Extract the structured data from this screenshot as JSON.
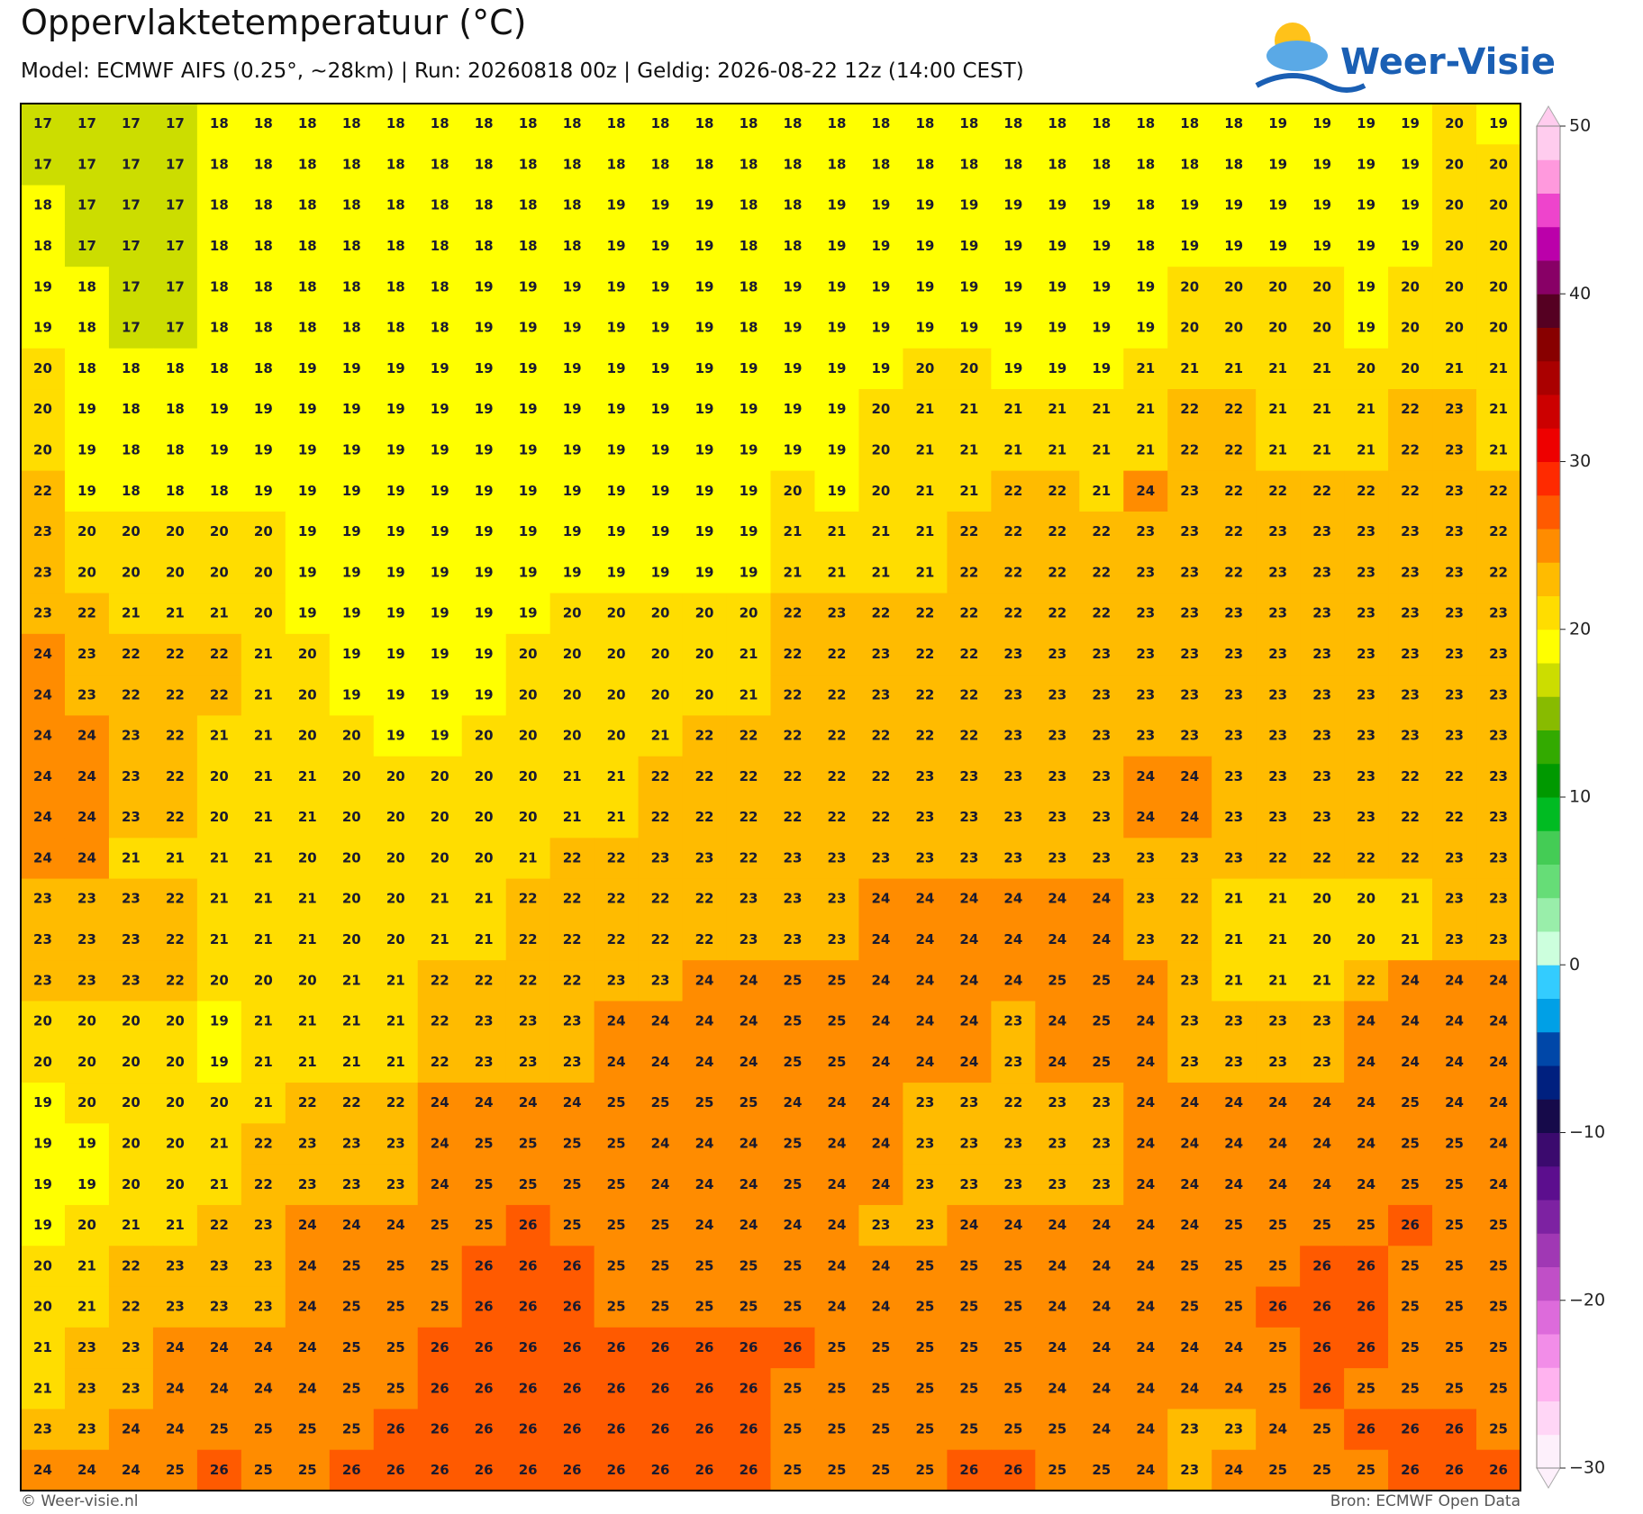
{
  "header": {
    "title": "Oppervlaktetemperatuur (°C)",
    "subtitle": "Model: ECMWF AIFS (0.25°, ~28km)  |  Run: 20260818 00z  |  Geldig: 2026-08-22 12z (14:00 CEST)",
    "logo": "Weer-Visie"
  },
  "footer": {
    "left": "© Weer-visie.nl",
    "right": "Bron: ECMWF Open Data"
  },
  "colorbar": {
    "lim": [
      -30,
      50
    ],
    "ticks": [
      50,
      40,
      30,
      20,
      10,
      0,
      {
        "value": -10,
        "label": "−10"
      },
      {
        "value": -20,
        "label": "−20"
      },
      {
        "value": -30,
        "label": "−30"
      }
    ],
    "colors": [
      "#fdf0fb",
      "#ffd6f6",
      "#ffb3ef",
      "#f28de8",
      "#dd6bdb",
      "#c04fc7",
      "#a038b4",
      "#7d22a2",
      "#5c0e8e",
      "#3b0a6e",
      "#160a4a",
      "#00207f",
      "#0047a8",
      "#00a0e6",
      "#33ccff",
      "#ccffdd",
      "#99eeaa",
      "#66dd77",
      "#44cc55",
      "#00bb22",
      "#009900",
      "#33aa00",
      "#88bb00",
      "#ccdd00",
      "#ffff00",
      "#ffdd00",
      "#ffbb00",
      "#ff8c00",
      "#ff5a00",
      "#ff2a00",
      "#ee0000",
      "#cc0000",
      "#aa0000",
      "#880000",
      "#550022",
      "#880066",
      "#bb00aa",
      "#ee44cc",
      "#ff99dd",
      "#ffccee"
    ]
  },
  "grid": {
    "rows": [
      [
        17,
        17,
        17,
        17,
        18,
        18,
        18,
        18,
        18,
        18,
        18,
        18,
        18,
        18,
        18,
        18,
        18,
        18,
        18,
        18,
        18,
        18,
        18,
        18,
        18,
        18,
        18,
        18,
        19,
        19,
        19,
        19,
        20,
        19
      ],
      [
        17,
        17,
        17,
        17,
        18,
        18,
        18,
        18,
        18,
        18,
        18,
        18,
        18,
        18,
        18,
        18,
        18,
        18,
        18,
        18,
        18,
        18,
        18,
        18,
        18,
        18,
        18,
        18,
        19,
        19,
        19,
        19,
        20,
        20
      ],
      [
        18,
        17,
        17,
        17,
        18,
        18,
        18,
        18,
        18,
        18,
        18,
        18,
        18,
        19,
        19,
        19,
        18,
        18,
        19,
        19,
        19,
        19,
        19,
        19,
        19,
        18,
        19,
        19,
        19,
        19,
        19,
        19,
        20,
        20
      ],
      [
        18,
        17,
        17,
        17,
        18,
        18,
        18,
        18,
        18,
        18,
        18,
        18,
        18,
        19,
        19,
        19,
        18,
        18,
        19,
        19,
        19,
        19,
        19,
        19,
        19,
        18,
        19,
        19,
        19,
        19,
        19,
        19,
        20,
        20
      ],
      [
        19,
        18,
        17,
        17,
        18,
        18,
        18,
        18,
        18,
        18,
        19,
        19,
        19,
        19,
        19,
        19,
        18,
        19,
        19,
        19,
        19,
        19,
        19,
        19,
        19,
        19,
        20,
        20,
        20,
        20,
        19,
        20,
        20,
        20
      ],
      [
        19,
        18,
        17,
        17,
        18,
        18,
        18,
        18,
        18,
        18,
        19,
        19,
        19,
        19,
        19,
        19,
        18,
        19,
        19,
        19,
        19,
        19,
        19,
        19,
        19,
        19,
        20,
        20,
        20,
        20,
        19,
        20,
        20,
        20
      ],
      [
        20,
        18,
        18,
        18,
        18,
        18,
        19,
        19,
        19,
        19,
        19,
        19,
        19,
        19,
        19,
        19,
        19,
        19,
        19,
        19,
        20,
        20,
        19,
        19,
        19,
        21,
        21,
        21,
        21,
        21,
        20,
        20,
        21,
        21
      ],
      [
        20,
        19,
        18,
        18,
        19,
        19,
        19,
        19,
        19,
        19,
        19,
        19,
        19,
        19,
        19,
        19,
        19,
        19,
        19,
        20,
        21,
        21,
        21,
        21,
        21,
        21,
        22,
        22,
        21,
        21,
        21,
        22,
        23,
        21
      ],
      [
        20,
        19,
        18,
        18,
        19,
        19,
        19,
        19,
        19,
        19,
        19,
        19,
        19,
        19,
        19,
        19,
        19,
        19,
        19,
        20,
        21,
        21,
        21,
        21,
        21,
        21,
        22,
        22,
        21,
        21,
        21,
        22,
        23,
        21
      ],
      [
        22,
        19,
        18,
        18,
        18,
        19,
        19,
        19,
        19,
        19,
        19,
        19,
        19,
        19,
        19,
        19,
        19,
        20,
        19,
        20,
        21,
        21,
        22,
        22,
        21,
        24,
        23,
        22,
        22,
        22,
        22,
        22,
        23,
        22
      ],
      [
        23,
        20,
        20,
        20,
        20,
        20,
        19,
        19,
        19,
        19,
        19,
        19,
        19,
        19,
        19,
        19,
        19,
        21,
        21,
        21,
        21,
        22,
        22,
        22,
        22,
        23,
        23,
        22,
        23,
        23,
        23,
        23,
        23,
        22
      ],
      [
        23,
        20,
        20,
        20,
        20,
        20,
        19,
        19,
        19,
        19,
        19,
        19,
        19,
        19,
        19,
        19,
        19,
        21,
        21,
        21,
        21,
        22,
        22,
        22,
        22,
        23,
        23,
        22,
        23,
        23,
        23,
        23,
        23,
        22
      ],
      [
        23,
        22,
        21,
        21,
        21,
        20,
        19,
        19,
        19,
        19,
        19,
        19,
        20,
        20,
        20,
        20,
        20,
        22,
        23,
        22,
        22,
        22,
        22,
        22,
        22,
        23,
        23,
        23,
        23,
        23,
        23,
        23,
        23,
        23
      ],
      [
        24,
        23,
        22,
        22,
        22,
        21,
        20,
        19,
        19,
        19,
        19,
        20,
        20,
        20,
        20,
        20,
        21,
        22,
        22,
        23,
        22,
        22,
        23,
        23,
        23,
        23,
        23,
        23,
        23,
        23,
        23,
        23,
        23,
        23
      ],
      [
        24,
        23,
        22,
        22,
        22,
        21,
        20,
        19,
        19,
        19,
        19,
        20,
        20,
        20,
        20,
        20,
        21,
        22,
        22,
        23,
        22,
        22,
        23,
        23,
        23,
        23,
        23,
        23,
        23,
        23,
        23,
        23,
        23,
        23
      ],
      [
        24,
        24,
        23,
        22,
        21,
        21,
        20,
        20,
        19,
        19,
        20,
        20,
        20,
        20,
        21,
        22,
        22,
        22,
        22,
        22,
        22,
        22,
        23,
        23,
        23,
        23,
        23,
        23,
        23,
        23,
        23,
        23,
        23,
        23
      ],
      [
        24,
        24,
        23,
        22,
        20,
        21,
        21,
        20,
        20,
        20,
        20,
        20,
        21,
        21,
        22,
        22,
        22,
        22,
        22,
        22,
        23,
        23,
        23,
        23,
        23,
        24,
        24,
        23,
        23,
        23,
        23,
        22,
        22,
        23
      ],
      [
        24,
        24,
        23,
        22,
        20,
        21,
        21,
        20,
        20,
        20,
        20,
        20,
        21,
        21,
        22,
        22,
        22,
        22,
        22,
        22,
        23,
        23,
        23,
        23,
        23,
        24,
        24,
        23,
        23,
        23,
        23,
        22,
        22,
        23
      ],
      [
        24,
        24,
        21,
        21,
        21,
        21,
        20,
        20,
        20,
        20,
        20,
        21,
        22,
        22,
        23,
        23,
        22,
        23,
        23,
        23,
        23,
        23,
        23,
        23,
        23,
        23,
        23,
        23,
        22,
        22,
        22,
        22,
        23,
        23
      ],
      [
        23,
        23,
        23,
        22,
        21,
        21,
        21,
        20,
        20,
        21,
        21,
        22,
        22,
        22,
        22,
        22,
        23,
        23,
        23,
        24,
        24,
        24,
        24,
        24,
        24,
        23,
        22,
        21,
        21,
        20,
        20,
        21,
        23,
        23
      ],
      [
        23,
        23,
        23,
        22,
        21,
        21,
        21,
        20,
        20,
        21,
        21,
        22,
        22,
        22,
        22,
        22,
        23,
        23,
        23,
        24,
        24,
        24,
        24,
        24,
        24,
        23,
        22,
        21,
        21,
        20,
        20,
        21,
        23,
        23
      ],
      [
        23,
        23,
        23,
        22,
        20,
        20,
        20,
        21,
        21,
        22,
        22,
        22,
        22,
        23,
        23,
        24,
        24,
        25,
        25,
        24,
        24,
        24,
        24,
        25,
        25,
        24,
        23,
        21,
        21,
        21,
        22,
        24,
        24,
        24
      ],
      [
        20,
        20,
        20,
        20,
        19,
        21,
        21,
        21,
        21,
        22,
        23,
        23,
        23,
        24,
        24,
        24,
        24,
        25,
        25,
        24,
        24,
        24,
        23,
        24,
        25,
        24,
        23,
        23,
        23,
        23,
        24,
        24,
        24,
        24
      ],
      [
        20,
        20,
        20,
        20,
        19,
        21,
        21,
        21,
        21,
        22,
        23,
        23,
        23,
        24,
        24,
        24,
        24,
        25,
        25,
        24,
        24,
        24,
        23,
        24,
        25,
        24,
        23,
        23,
        23,
        23,
        24,
        24,
        24,
        24
      ],
      [
        19,
        20,
        20,
        20,
        20,
        21,
        22,
        22,
        22,
        24,
        24,
        24,
        24,
        25,
        25,
        25,
        25,
        24,
        24,
        24,
        23,
        23,
        22,
        23,
        23,
        24,
        24,
        24,
        24,
        24,
        24,
        25,
        24,
        24
      ],
      [
        19,
        19,
        20,
        20,
        21,
        22,
        23,
        23,
        23,
        24,
        25,
        25,
        25,
        25,
        24,
        24,
        24,
        25,
        24,
        24,
        23,
        23,
        23,
        23,
        23,
        24,
        24,
        24,
        24,
        24,
        24,
        25,
        25,
        24
      ],
      [
        19,
        19,
        20,
        20,
        21,
        22,
        23,
        23,
        23,
        24,
        25,
        25,
        25,
        25,
        24,
        24,
        24,
        25,
        24,
        24,
        23,
        23,
        23,
        23,
        23,
        24,
        24,
        24,
        24,
        24,
        24,
        25,
        25,
        24
      ],
      [
        19,
        20,
        21,
        21,
        22,
        23,
        24,
        24,
        24,
        25,
        25,
        26,
        25,
        25,
        25,
        24,
        24,
        24,
        24,
        23,
        23,
        24,
        24,
        24,
        24,
        24,
        24,
        25,
        25,
        25,
        25,
        26,
        25,
        25
      ],
      [
        20,
        21,
        22,
        23,
        23,
        23,
        24,
        25,
        25,
        25,
        26,
        26,
        26,
        25,
        25,
        25,
        25,
        25,
        24,
        24,
        25,
        25,
        25,
        24,
        24,
        24,
        25,
        25,
        25,
        26,
        26,
        25,
        25,
        25
      ],
      [
        20,
        21,
        22,
        23,
        23,
        23,
        24,
        25,
        25,
        25,
        26,
        26,
        26,
        25,
        25,
        25,
        25,
        25,
        24,
        24,
        25,
        25,
        25,
        24,
        24,
        24,
        25,
        25,
        26,
        26,
        26,
        25,
        25,
        25
      ],
      [
        21,
        23,
        23,
        24,
        24,
        24,
        24,
        25,
        25,
        26,
        26,
        26,
        26,
        26,
        26,
        26,
        26,
        26,
        25,
        25,
        25,
        25,
        25,
        24,
        24,
        24,
        24,
        24,
        25,
        26,
        26,
        25,
        25,
        25
      ],
      [
        21,
        23,
        23,
        24,
        24,
        24,
        24,
        25,
        25,
        26,
        26,
        26,
        26,
        26,
        26,
        26,
        26,
        25,
        25,
        25,
        25,
        25,
        25,
        24,
        24,
        24,
        24,
        24,
        25,
        26,
        25,
        25,
        25,
        25
      ],
      [
        23,
        23,
        24,
        24,
        25,
        25,
        25,
        25,
        26,
        26,
        26,
        26,
        26,
        26,
        26,
        26,
        26,
        25,
        25,
        25,
        25,
        25,
        25,
        25,
        24,
        24,
        23,
        23,
        24,
        25,
        26,
        26,
        26,
        25
      ],
      [
        24,
        24,
        24,
        25,
        26,
        25,
        25,
        26,
        26,
        26,
        26,
        26,
        26,
        26,
        26,
        26,
        26,
        25,
        25,
        25,
        25,
        26,
        26,
        25,
        25,
        24,
        23,
        24,
        25,
        25,
        25,
        26,
        26,
        26
      ]
    ]
  }
}
